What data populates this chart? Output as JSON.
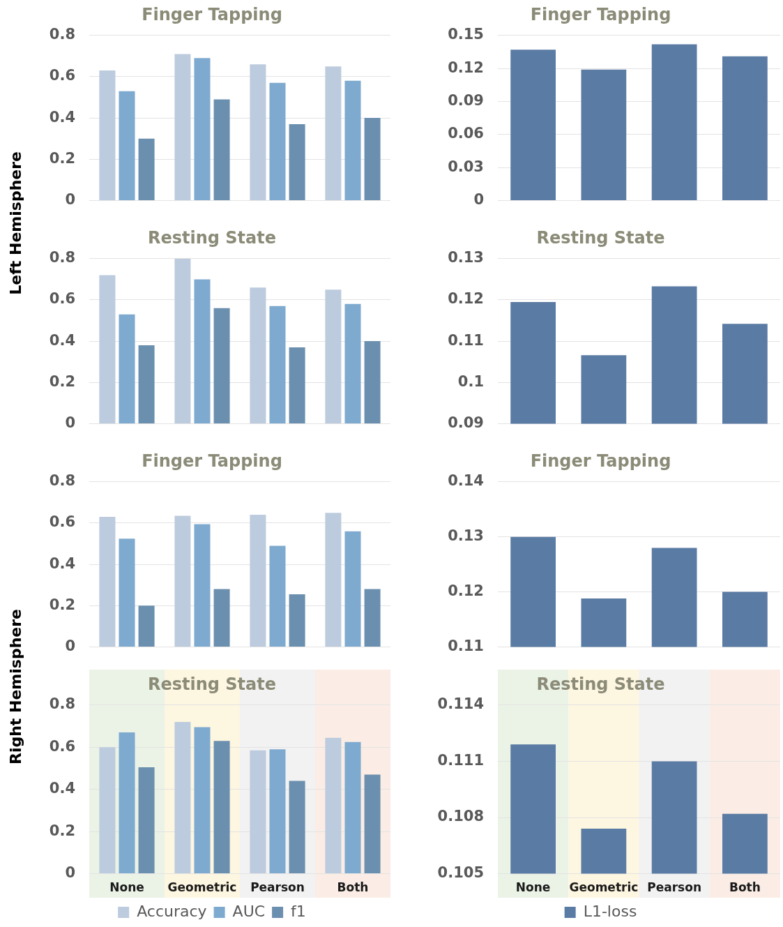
{
  "chart_data": [
    {
      "type": "bar",
      "title": "Finger Tapping",
      "ylabel": "Left Hemisphere",
      "categories": [
        null,
        null,
        null,
        null
      ],
      "grid": "y",
      "ylim": [
        0,
        0.8
      ],
      "yticks": [
        0,
        0.2,
        0.4,
        0.6,
        0.8
      ],
      "series": [
        {
          "color": "#bccbdd",
          "values": [
            0.63,
            0.71,
            0.66,
            0.65
          ]
        },
        {
          "color": "#7eaad0",
          "values": [
            0.53,
            0.69,
            0.57,
            0.58
          ]
        },
        {
          "color": "#6b8fae",
          "values": [
            0.3,
            0.49,
            0.37,
            0.4
          ]
        }
      ]
    },
    {
      "type": "bar",
      "title": "Finger Tapping",
      "categories": [
        null,
        null,
        null,
        null
      ],
      "grid": "y",
      "ylim": [
        0,
        0.15
      ],
      "yticks": [
        0,
        0.03,
        0.06,
        0.09,
        0.12,
        0.15
      ],
      "series": [
        {
          "color": "#5a7ba3",
          "values": [
            0.137,
            0.119,
            0.142,
            0.131
          ]
        }
      ]
    },
    {
      "type": "bar",
      "title": "Resting State",
      "categories": [
        null,
        null,
        null,
        null
      ],
      "grid": "y",
      "ylim": [
        0,
        0.8
      ],
      "yticks": [
        0,
        0.2,
        0.4,
        0.6,
        0.8
      ],
      "series": [
        {
          "color": "#bccbdd",
          "values": [
            0.72,
            0.8,
            0.66,
            0.65
          ]
        },
        {
          "color": "#7eaad0",
          "values": [
            0.53,
            0.7,
            0.57,
            0.58
          ]
        },
        {
          "color": "#6b8fae",
          "values": [
            0.38,
            0.56,
            0.37,
            0.4
          ]
        }
      ]
    },
    {
      "type": "bar",
      "title": "Resting State",
      "categories": [
        null,
        null,
        null,
        null
      ],
      "grid": "y",
      "ylim": [
        0.09,
        0.13
      ],
      "yticks": [
        0.09,
        0.1,
        0.11,
        0.12,
        0.13
      ],
      "series": [
        {
          "color": "#5a7ba3",
          "values": [
            0.1195,
            0.1066,
            0.1233,
            0.1142
          ]
        }
      ]
    },
    {
      "type": "bar",
      "title": "Finger Tapping",
      "ylabel": "Right Hemisphere",
      "categories": [
        null,
        null,
        null,
        null
      ],
      "grid": "y",
      "ylim": [
        0,
        0.8
      ],
      "yticks": [
        0,
        0.2,
        0.4,
        0.6,
        0.8
      ],
      "series": [
        {
          "color": "#bccbdd",
          "values": [
            0.63,
            0.635,
            0.64,
            0.65
          ]
        },
        {
          "color": "#7eaad0",
          "values": [
            0.525,
            0.595,
            0.49,
            0.56
          ]
        },
        {
          "color": "#6b8fae",
          "values": [
            0.2,
            0.28,
            0.255,
            0.28
          ]
        }
      ]
    },
    {
      "type": "bar",
      "title": "Finger Tapping",
      "categories": [
        null,
        null,
        null,
        null
      ],
      "grid": "y",
      "ylim": [
        0.11,
        0.14
      ],
      "yticks": [
        0.11,
        0.12,
        0.13,
        0.14
      ],
      "series": [
        {
          "color": "#5a7ba3",
          "values": [
            0.13,
            0.1188,
            0.128,
            0.12
          ]
        }
      ]
    },
    {
      "type": "bar",
      "title": "Resting State",
      "categories": [
        "None",
        "Geometric",
        "Pearson",
        "Both"
      ],
      "grid": "y",
      "legend": "bottom",
      "ylim": [
        0,
        0.8
      ],
      "yticks": [
        0,
        0.2,
        0.4,
        0.6,
        0.8
      ],
      "bands": [
        {
          "axis": "x",
          "from": "None",
          "to": "None",
          "color": "#ebf3e6"
        },
        {
          "axis": "x",
          "from": "Geometric",
          "to": "Geometric",
          "color": "#fdf6e0"
        },
        {
          "axis": "x",
          "from": "Pearson",
          "to": "Pearson",
          "color": "#f2f2f2"
        },
        {
          "axis": "x",
          "from": "Both",
          "to": "Both",
          "color": "#fbede5"
        }
      ],
      "series": [
        {
          "name": "Accuracy",
          "color": "#bccbdd",
          "values": [
            0.6,
            0.72,
            0.585,
            0.645
          ]
        },
        {
          "name": "AUC",
          "color": "#7eaad0",
          "values": [
            0.67,
            0.695,
            0.59,
            0.625
          ]
        },
        {
          "name": "f1",
          "color": "#6b8fae",
          "values": [
            0.505,
            0.63,
            0.44,
            0.47
          ]
        }
      ]
    },
    {
      "type": "bar",
      "title": "Resting State",
      "categories": [
        "None",
        "Geometric",
        "Pearson",
        "Both"
      ],
      "grid": "y",
      "legend": "bottom",
      "ylim": [
        0.105,
        0.114
      ],
      "yticks": [
        0.105,
        0.108,
        0.111,
        0.114
      ],
      "bands": [
        {
          "axis": "x",
          "from": "None",
          "to": "None",
          "color": "#ebf3e6"
        },
        {
          "axis": "x",
          "from": "Geometric",
          "to": "Geometric",
          "color": "#fdf6e0"
        },
        {
          "axis": "x",
          "from": "Pearson",
          "to": "Pearson",
          "color": "#f2f2f2"
        },
        {
          "axis": "x",
          "from": "Both",
          "to": "Both",
          "color": "#fbede5"
        }
      ],
      "series": [
        {
          "name": "L1-loss",
          "color": "#5a7ba3",
          "values": [
            0.1119,
            0.1074,
            0.111,
            0.1082
          ]
        }
      ]
    }
  ]
}
